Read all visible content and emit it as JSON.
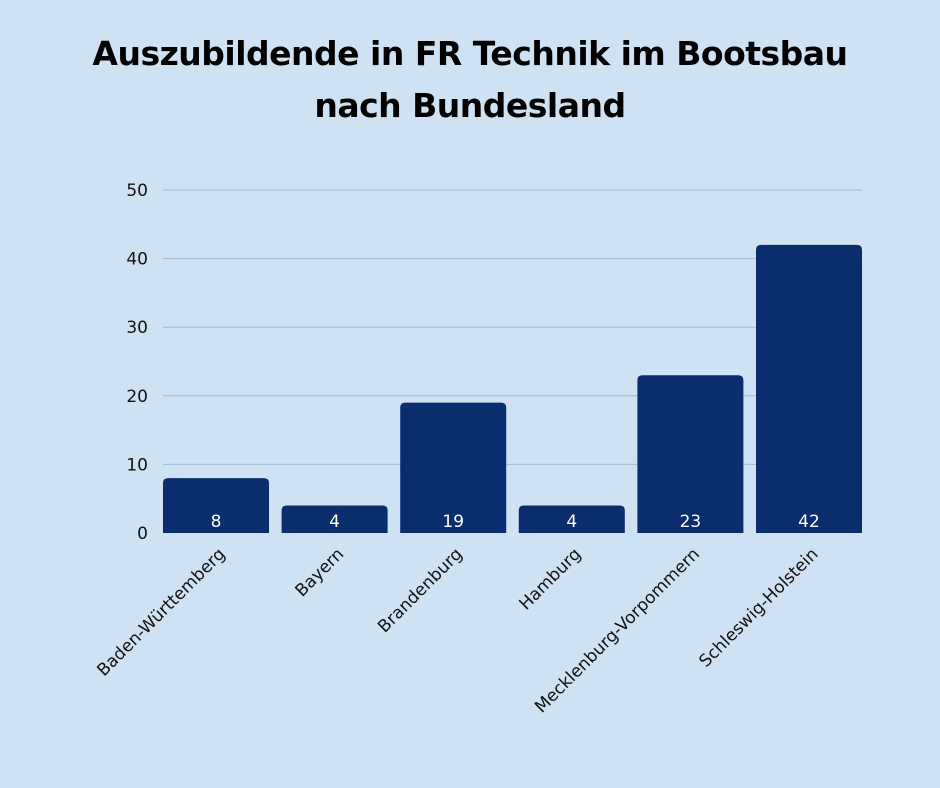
{
  "colors": {
    "background": "#cfe2f3",
    "bar": "#0a2d6e",
    "grid": "#9fb8d0",
    "bar_label": "#ffffff"
  },
  "chart_data": {
    "type": "bar",
    "title_lines": [
      "Auszubildende in FR Technik im Bootsbau",
      "nach Bundesland"
    ],
    "xlabel": "",
    "ylabel": "",
    "ylim": [
      0,
      50
    ],
    "yticks": [
      0,
      10,
      20,
      30,
      40,
      50
    ],
    "grid": true,
    "categories": [
      "Baden-Württemberg",
      "Bayern",
      "Brandenburg",
      "Hamburg",
      "Mecklenburg-Vorpommern",
      "Schleswig-Holstein"
    ],
    "values": [
      8,
      4,
      19,
      4,
      23,
      42
    ]
  }
}
